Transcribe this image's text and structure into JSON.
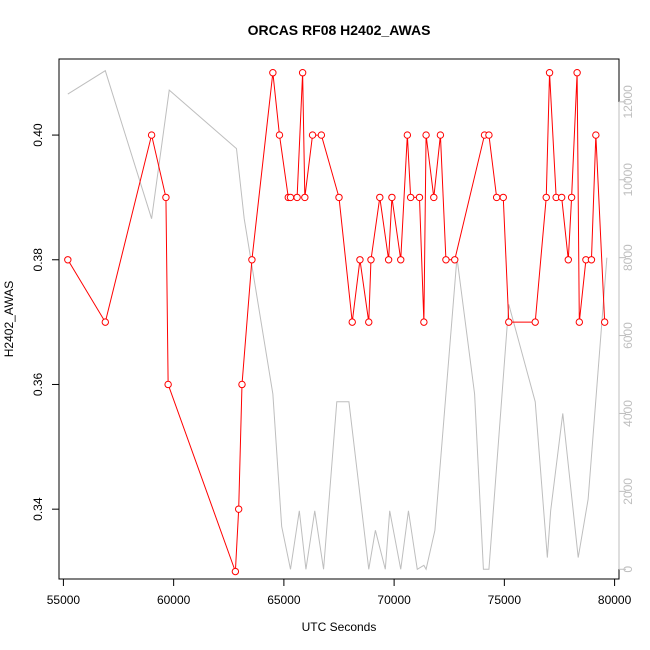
{
  "chart_data": {
    "type": "line",
    "title": "ORCAS RF08 H2402_AWAS",
    "xlabel": "UTC Seconds",
    "ylabel": "H2402_AWAS",
    "xlim": [
      54800,
      80200
    ],
    "ylim": [
      0.3288,
      0.4122
    ],
    "y2lim": [
      -250,
      13100
    ],
    "x_ticks": [
      55000,
      60000,
      65000,
      70000,
      75000,
      80000
    ],
    "x_tick_labels": [
      "55000",
      "60000",
      "65000",
      "70000",
      "75000",
      "80000"
    ],
    "y_ticks": [
      0.34,
      0.36,
      0.38,
      0.4
    ],
    "y_tick_labels": [
      "0.34",
      "0.36",
      "0.38",
      "0.40"
    ],
    "y2_ticks": [
      0,
      2000,
      4000,
      6000,
      8000,
      10000,
      12000
    ],
    "y2_tick_labels": [
      "0",
      "2000",
      "4000",
      "6000",
      "8000",
      "10000",
      "12000"
    ],
    "grid": false,
    "colors": {
      "series_primary": "#ff0000",
      "series_secondary": "#bebebe",
      "axis": "#000000",
      "axis_right": "#bebebe"
    },
    "series": [
      {
        "axis": "left",
        "style": "line+open-circle",
        "x": [
          55200,
          56900,
          59000,
          59650,
          59750,
          62800,
          62950,
          63100,
          63550,
          64500,
          64800,
          65200,
          65300,
          65600,
          65850,
          65950,
          66300,
          66700,
          67500,
          68100,
          68450,
          68850,
          68950,
          69350,
          69750,
          69900,
          70300,
          70600,
          70750,
          71150,
          71350,
          71450,
          71800,
          72100,
          72350,
          72750,
          74100,
          74300,
          74650,
          74950,
          75200,
          76400,
          76900,
          77050,
          77350,
          77600,
          77900,
          78050,
          78300,
          78400,
          78700,
          78950,
          79150,
          79550
        ],
        "y": [
          0.38,
          0.37,
          0.4,
          0.39,
          0.36,
          0.33,
          0.34,
          0.36,
          0.38,
          0.41,
          0.4,
          0.39,
          0.39,
          0.39,
          0.41,
          0.39,
          0.4,
          0.4,
          0.39,
          0.37,
          0.38,
          0.37,
          0.38,
          0.39,
          0.38,
          0.39,
          0.38,
          0.4,
          0.39,
          0.39,
          0.37,
          0.4,
          0.39,
          0.4,
          0.38,
          0.38,
          0.4,
          0.4,
          0.39,
          0.39,
          0.37,
          0.37,
          0.39,
          0.41,
          0.39,
          0.39,
          0.38,
          0.39,
          0.41,
          0.37,
          0.38,
          0.38,
          0.4,
          0.37
        ]
      },
      {
        "axis": "right",
        "style": "line",
        "x": [
          55200,
          56900,
          59000,
          59800,
          62850,
          63200,
          64500,
          64900,
          65300,
          65700,
          66000,
          66400,
          66800,
          67400,
          67950,
          68850,
          69150,
          69600,
          69800,
          70300,
          70650,
          71050,
          71350,
          71450,
          71850,
          72850,
          73650,
          74050,
          74300,
          75200,
          76400,
          76950,
          77100,
          77650,
          78350,
          78800,
          79650
        ],
        "y": [
          12200,
          12800,
          9000,
          12300,
          10800,
          9000,
          4500,
          1100,
          0,
          1500,
          0,
          1500,
          0,
          4300,
          4300,
          0,
          1000,
          0,
          1500,
          0,
          1500,
          0,
          100,
          0,
          1000,
          8000,
          4500,
          0,
          0,
          6800,
          4300,
          300,
          1500,
          4000,
          300,
          1800,
          8000
        ]
      }
    ]
  }
}
